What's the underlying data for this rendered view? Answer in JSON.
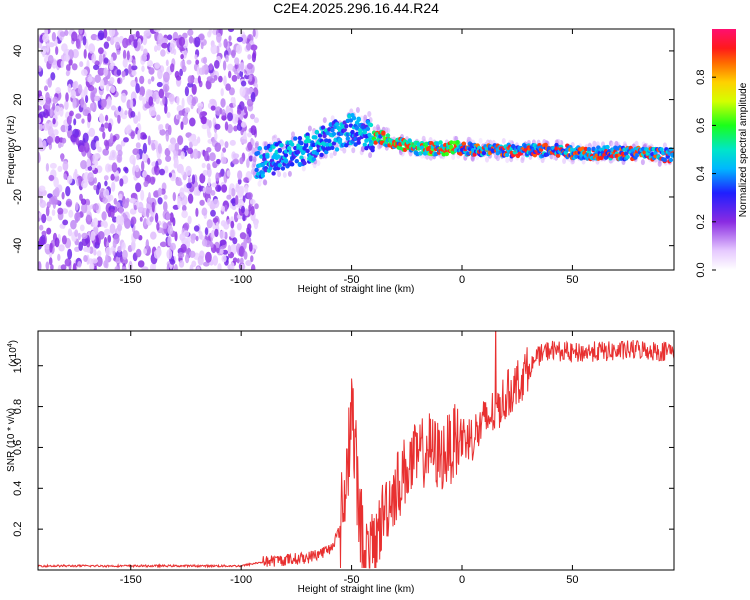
{
  "chart_data": [
    {
      "type": "heatmap",
      "title": "C2E4.2025.296.16.44.R24",
      "xlabel": "Height of straight line (km)",
      "ylabel": "Frequency (Hz)",
      "xlim": [
        -192,
        96
      ],
      "ylim": [
        -50,
        49
      ],
      "xticks": [
        -150,
        -100,
        -50,
        0,
        50
      ],
      "yticks": [
        -40,
        -20,
        0,
        20,
        40
      ],
      "colorbar": {
        "label": "Normalized spectral amplitude",
        "range": [
          0,
          1
        ],
        "ticks": [
          0.0,
          0.2,
          0.4,
          0.6,
          0.8
        ]
      },
      "ridge": {
        "description": "dominant frequency track vs height",
        "x": [
          -92,
          -80,
          -70,
          -60,
          -50,
          -45,
          -40,
          -35,
          -30,
          -25,
          -20,
          -10,
          0,
          10,
          20,
          40,
          60,
          80,
          95
        ],
        "y": [
          -6,
          -3,
          0,
          4,
          8,
          6,
          5,
          4,
          2,
          1,
          0,
          0,
          0,
          -1,
          -1,
          -1,
          -2,
          -2,
          -3
        ]
      }
    },
    {
      "type": "line",
      "ylabel": "SNR (10 * v/v)",
      "ylabel_scale_base": "(x10",
      "ylabel_scale_exp": "4",
      "ylabel_scale_close": ")",
      "xlabel": "Height of straight line (km)",
      "xlim": [
        -192,
        96
      ],
      "ylim": [
        0,
        1.17
      ],
      "xticks": [
        -150,
        -100,
        -50,
        0,
        50
      ],
      "yticks": [
        0.2,
        0.4,
        0.6,
        0.8,
        1.0
      ],
      "series": [
        {
          "name": "SNR",
          "color": "#e83030",
          "x": [
            -192,
            -150,
            -100,
            -90,
            -80,
            -70,
            -60,
            -55,
            -52,
            -50,
            -48,
            -46,
            -44,
            -40,
            -35,
            -30,
            -25,
            -20,
            -15,
            -10,
            -5,
            0,
            5,
            10,
            15,
            20,
            25,
            30,
            35,
            40,
            45,
            50,
            60,
            70,
            80,
            90,
            96
          ],
          "y": [
            0.02,
            0.02,
            0.02,
            0.04,
            0.05,
            0.06,
            0.1,
            0.2,
            0.5,
            0.85,
            0.5,
            0.2,
            0.08,
            0.1,
            0.3,
            0.4,
            0.5,
            0.55,
            0.6,
            0.55,
            0.6,
            0.65,
            0.65,
            0.72,
            0.78,
            0.85,
            0.92,
            0.98,
            1.05,
            1.08,
            1.07,
            1.06,
            1.07,
            1.07,
            1.08,
            1.07,
            1.08
          ]
        }
      ]
    }
  ],
  "colors": {
    "snr_line": "#e83030",
    "axis": "#000000"
  }
}
